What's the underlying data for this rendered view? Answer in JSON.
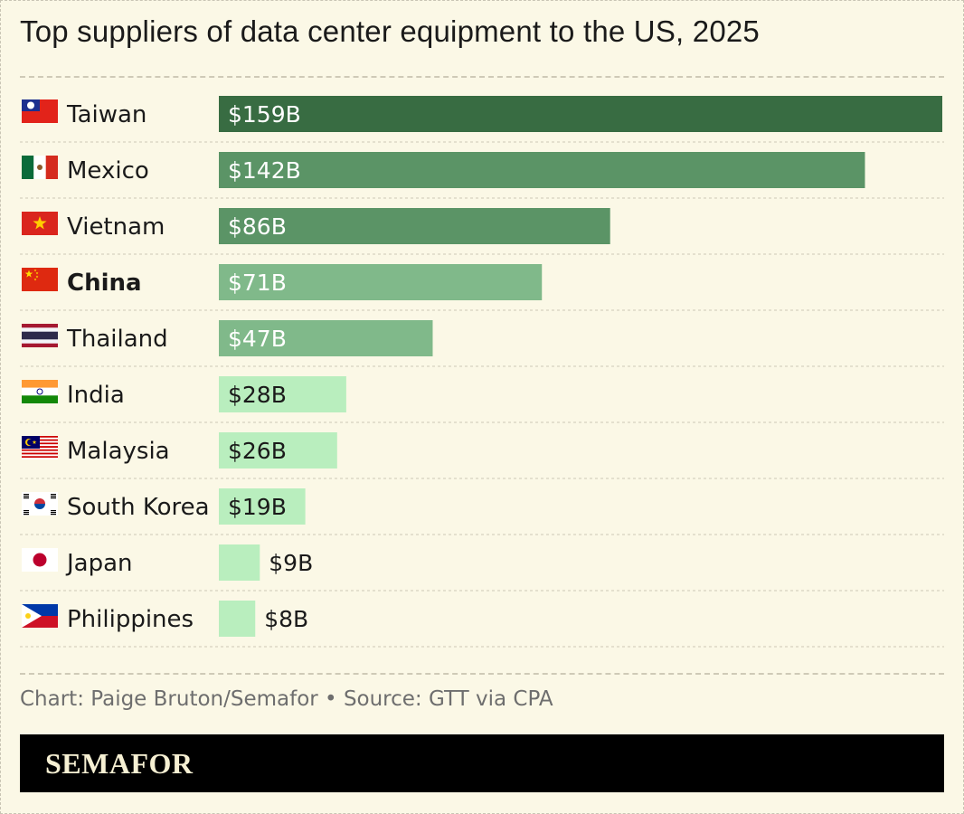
{
  "title": "Top suppliers of data center equipment to the US, 2025",
  "source": "Chart: Paige Bruton/Semafor • Source: GTT via CPA",
  "brand": "SEMAFOR",
  "chart_data": {
    "type": "bar",
    "orientation": "horizontal",
    "title": "Top suppliers of data center equipment to the US, 2025",
    "unit": "USD billions",
    "xlim": [
      0,
      159
    ],
    "grid": false,
    "categories": [
      "Taiwan",
      "Mexico",
      "Vietnam",
      "China",
      "Thailand",
      "India",
      "Malaysia",
      "South Korea",
      "Japan",
      "Philippines"
    ],
    "values": [
      159,
      142,
      86,
      71,
      47,
      28,
      26,
      19,
      9,
      8
    ],
    "labels": [
      "$159B",
      "$142B",
      "$86B",
      "$71B",
      "$47B",
      "$28B",
      "$26B",
      "$19B",
      "$9B",
      "$8B"
    ],
    "highlight": "China",
    "flag_icons": [
      "taiwan-flag-icon",
      "mexico-flag-icon",
      "vietnam-flag-icon",
      "china-flag-icon",
      "thailand-flag-icon",
      "india-flag-icon",
      "malaysia-flag-icon",
      "south-korea-flag-icon",
      "japan-flag-icon",
      "philippines-flag-icon"
    ],
    "bar_colors": [
      "#386c42",
      "#5b9466",
      "#5b9466",
      "#80b98a",
      "#80b98a",
      "#b9eebe",
      "#b9eebe",
      "#b9eebe",
      "#b9eebe",
      "#b9eebe"
    ],
    "label_colors": [
      "#ffffff",
      "#ffffff",
      "#ffffff",
      "#ffffff",
      "#ffffff",
      "#1a1a1a",
      "#1a1a1a",
      "#1a1a1a",
      "#1a1a1a",
      "#1a1a1a"
    ]
  }
}
